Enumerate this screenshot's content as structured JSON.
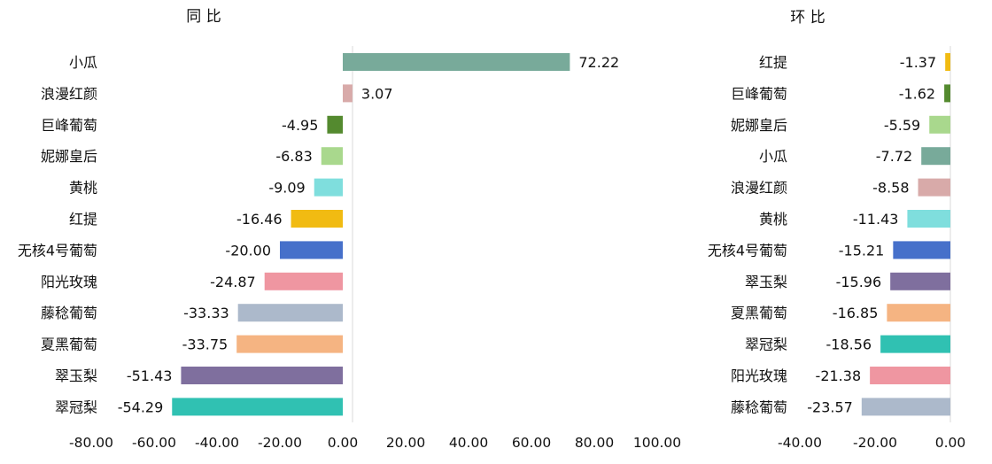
{
  "chart_data": [
    {
      "type": "bar",
      "orientation": "horizontal",
      "title": "同 比",
      "categories": [
        "小瓜",
        "浪漫红颜",
        "巨峰葡萄",
        "妮娜皇后",
        "黄桃",
        "红提",
        "无核4号葡萄",
        "阳光玫瑰",
        "藤稔葡萄",
        "夏黑葡萄",
        "翠玉梨",
        "翠冠梨"
      ],
      "values": [
        72.22,
        3.07,
        -4.95,
        -6.83,
        -9.09,
        -16.46,
        -20.0,
        -24.87,
        -33.33,
        -33.75,
        -51.43,
        -54.29
      ],
      "labels": [
        "72.22",
        "3.07",
        "-4.95",
        "-6.83",
        "-9.09",
        "-16.46",
        "-20.00",
        "-24.87",
        "-33.33",
        "-33.75",
        "-51.43",
        "-54.29"
      ],
      "colors": [
        "#78aa9a",
        "#d8aaa9",
        "#548a2f",
        "#a9d88d",
        "#7fdedd",
        "#f1bb12",
        "#4670ca",
        "#ef96a1",
        "#acb9cb",
        "#f5b482",
        "#7f6f9e",
        "#30c1b2"
      ],
      "xlim": [
        -80,
        100
      ],
      "xticks": [
        "-80.00",
        "-60.00",
        "-40.00",
        "-20.00",
        "0.00",
        "20.00",
        "40.00",
        "60.00",
        "80.00",
        "100.00"
      ],
      "xtick_values": [
        -80,
        -60,
        -40,
        -20,
        0,
        20,
        40,
        60,
        80,
        100
      ],
      "grid": false,
      "legend": "none"
    },
    {
      "type": "bar",
      "orientation": "horizontal",
      "title": "环 比",
      "categories": [
        "红提",
        "巨峰葡萄",
        "妮娜皇后",
        "小瓜",
        "浪漫红颜",
        "黄桃",
        "无核4号葡萄",
        "翠玉梨",
        "夏黑葡萄",
        "翠冠梨",
        "阳光玫瑰",
        "藤稔葡萄"
      ],
      "values": [
        -1.37,
        -1.62,
        -5.59,
        -7.72,
        -8.58,
        -11.43,
        -15.21,
        -15.96,
        -16.85,
        -18.56,
        -21.38,
        -23.57
      ],
      "labels": [
        "-1.37",
        "-1.62",
        "-5.59",
        "-7.72",
        "-8.58",
        "-11.43",
        "-15.21",
        "-15.96",
        "-16.85",
        "-18.56",
        "-21.38",
        "-23.57"
      ],
      "colors": [
        "#f1bb12",
        "#548a2f",
        "#a9d88d",
        "#78aa9a",
        "#d8aaa9",
        "#7fdedd",
        "#4670ca",
        "#7f6f9e",
        "#f5b482",
        "#30c1b2",
        "#ef96a1",
        "#acb9cb"
      ],
      "xlim": [
        -40,
        0
      ],
      "xticks": [
        "-40.00",
        "-20.00",
        "0.00"
      ],
      "xtick_values": [
        -40,
        -20,
        0
      ],
      "grid": false,
      "legend": "none"
    }
  ]
}
